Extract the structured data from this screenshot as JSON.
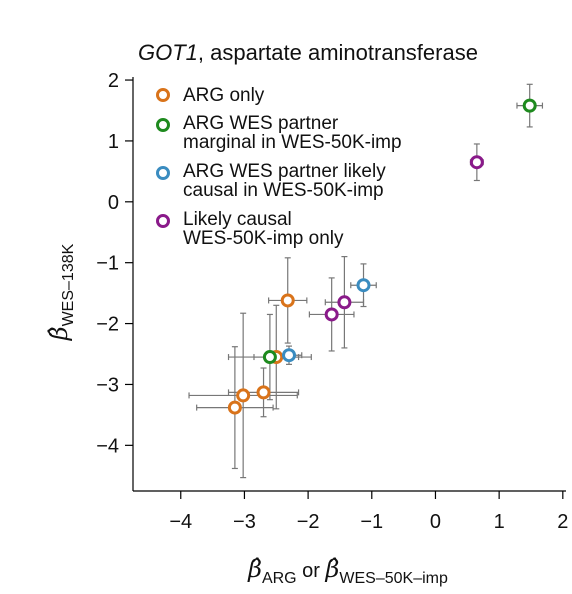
{
  "chart_data": {
    "type": "scatter",
    "title_gene": "GOT1",
    "title_rest": ", aspartate aminotransferase",
    "xlabel": {
      "parts": [
        {
          "symbol": "β̂",
          "sub": "ARG"
        },
        {
          "text": " or "
        },
        {
          "symbol": "β̂",
          "sub": "WES–50K–imp"
        }
      ]
    },
    "ylabel": {
      "symbol": "β̂",
      "sub": "WES–138K"
    },
    "xlim": [
      -4.75,
      2.05
    ],
    "ylim": [
      -4.75,
      2.05
    ],
    "xticks": [
      -4,
      -3,
      -2,
      -1,
      0,
      1,
      2
    ],
    "yticks": [
      -4,
      -3,
      -2,
      -1,
      0,
      1,
      2
    ],
    "xtick_labels": [
      "−4",
      "−3",
      "−2",
      "−1",
      "0",
      "1",
      "2"
    ],
    "ytick_labels": [
      "−4",
      "−3",
      "−2",
      "−1",
      "0",
      "1",
      "2"
    ],
    "legend_position": "top-left",
    "series": [
      {
        "name": "ARG only",
        "legend_lines": [
          "ARG only"
        ],
        "color": "#d9731a",
        "points": [
          {
            "x": -2.32,
            "y": -1.62,
            "xerr": 0.3,
            "yerr": 0.7
          },
          {
            "x": -2.5,
            "y": -2.55,
            "xerr": 0.35,
            "yerr": 0.85
          },
          {
            "x": -2.7,
            "y": -3.13,
            "xerr": 0.55,
            "yerr": 0.4
          },
          {
            "x": -3.02,
            "y": -3.18,
            "xerr": 0.85,
            "yerr": 1.35
          },
          {
            "x": -3.15,
            "y": -3.38,
            "xerr": 0.6,
            "yerr": 1.0
          }
        ]
      },
      {
        "name": "ARG WES partner marginal in WES-50K-imp",
        "legend_lines": [
          "ARG WES partner",
          "marginal in WES-50K-imp"
        ],
        "color": "#1e8a1e",
        "points": [
          {
            "x": 1.48,
            "y": 1.58,
            "xerr": 0.2,
            "yerr": 0.35
          },
          {
            "x": -2.6,
            "y": -2.55,
            "xerr": 0.65,
            "yerr": 0.7
          }
        ]
      },
      {
        "name": "ARG WES partner likely causal in WES-50K-imp",
        "legend_lines": [
          "ARG WES partner likely",
          "causal in WES-50K-imp"
        ],
        "color": "#3a8cc0",
        "points": [
          {
            "x": -1.13,
            "y": -1.37,
            "xerr": 0.2,
            "yerr": 0.35
          },
          {
            "x": -2.3,
            "y": -2.52,
            "xerr": 0.2,
            "yerr": 0.15
          }
        ]
      },
      {
        "name": "Likely causal WES-50K-imp only",
        "legend_lines": [
          "Likely causal",
          "WES-50K-imp only"
        ],
        "color": "#8a1a8a",
        "points": [
          {
            "x": 0.65,
            "y": 0.65,
            "xerr": 0.1,
            "yerr": 0.3
          },
          {
            "x": -1.43,
            "y": -1.65,
            "xerr": 0.3,
            "yerr": 0.75
          },
          {
            "x": -1.63,
            "y": -1.85,
            "xerr": 0.35,
            "yerr": 0.6
          }
        ]
      }
    ]
  }
}
